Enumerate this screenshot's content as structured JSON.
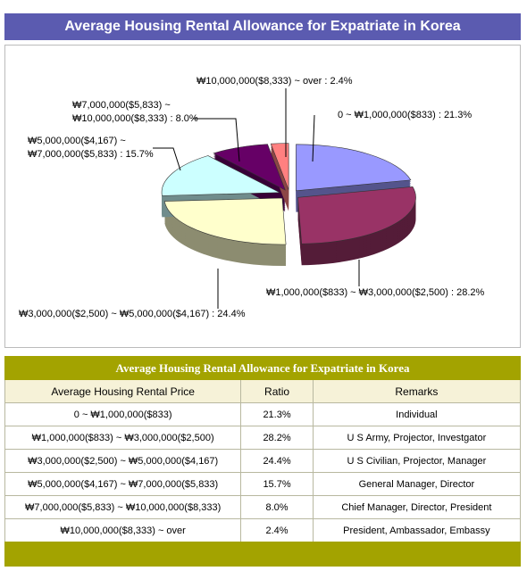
{
  "header": {
    "title": "Average Housing Rental Allowance for Expatriate in Korea"
  },
  "chart_data": {
    "type": "pie",
    "labels": [
      [
        "0 ~ ₩1,000,000($833) : 21.3%"
      ],
      [
        "₩1,000,000($833) ~ ₩3,000,000($2,500) : 28.2%"
      ],
      [
        "₩3,000,000($2,500) ~ ₩5,000,000($4,167) : 24.4%"
      ],
      [
        "₩5,000,000($4,167) ~",
        "₩7,000,000($5,833) : 15.7%"
      ],
      [
        "₩7,000,000($5,833) ~",
        "₩10,000,000($8,333) : 8.0%"
      ],
      [
        "₩10,000,000($8,333) ~ over : 2.4%"
      ]
    ],
    "values": [
      21.3,
      28.2,
      24.4,
      15.7,
      8.0,
      2.4
    ],
    "colors": [
      "#9999ff",
      "#993366",
      "#ffffcc",
      "#ccffff",
      "#660066",
      "#ff8080"
    ]
  },
  "table": {
    "title": "Average Housing Rental Allowance for Expatriate in Korea",
    "columns": [
      "Average Housing Rental Price",
      "Ratio",
      "Remarks"
    ],
    "rows": [
      [
        "0 ~ ₩1,000,000($833)",
        "21.3%",
        "Individual"
      ],
      [
        "₩1,000,000($833) ~ ₩3,000,000($2,500)",
        "28.2%",
        "U S Army, Projector, Investgator"
      ],
      [
        "₩3,000,000($2,500) ~ ₩5,000,000($4,167)",
        "24.4%",
        "U S Civilian, Projector, Manager"
      ],
      [
        "₩5,000,000($4,167) ~ ₩7,000,000($5,833)",
        "15.7%",
        "General Manager, Director"
      ],
      [
        "₩7,000,000($5,833) ~ ₩10,000,000($8,333)",
        "8.0%",
        "Chief Manager, Director, President"
      ],
      [
        "₩10,000,000($8,333) ~ over",
        "2.4%",
        "President, Ambassador, Embassy"
      ]
    ]
  }
}
